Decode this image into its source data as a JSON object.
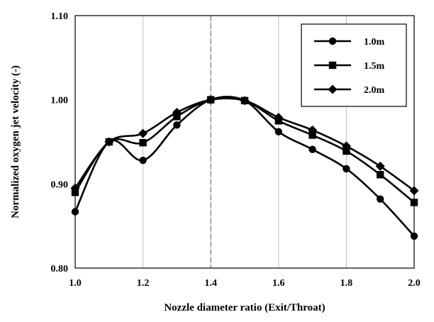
{
  "chart_data": {
    "type": "line",
    "title": "",
    "xlabel": "Nozzle diameter ratio (Exit/Throat)",
    "ylabel": "Normalized oxygen jet velocity (-)",
    "x": [
      1.0,
      1.1,
      1.2,
      1.3,
      1.4,
      1.5,
      1.6,
      1.7,
      1.8,
      1.9,
      2.0
    ],
    "xlim": [
      1.0,
      2.0
    ],
    "ylim": [
      0.8,
      1.1
    ],
    "x_ticks": [
      "1.0",
      "1.2",
      "1.4",
      "1.6",
      "1.8",
      "2.0"
    ],
    "y_ticks": [
      "0.80",
      "0.90",
      "1.00",
      "1.10"
    ],
    "grid": "vertical",
    "reference_line_x": 1.4,
    "legend_position": "top-right",
    "series": [
      {
        "name": "1.0m",
        "marker": "circle",
        "values": [
          0.867,
          0.95,
          0.928,
          0.97,
          1.0,
          0.999,
          0.962,
          0.941,
          0.918,
          0.882,
          0.838
        ]
      },
      {
        "name": "1.5m",
        "marker": "square",
        "values": [
          0.89,
          0.95,
          0.949,
          0.98,
          1.0,
          0.999,
          0.975,
          0.958,
          0.939,
          0.911,
          0.878
        ]
      },
      {
        "name": "2.0m",
        "marker": "diamond",
        "values": [
          0.895,
          0.95,
          0.96,
          0.985,
          1.0,
          0.999,
          0.979,
          0.964,
          0.945,
          0.921,
          0.892
        ]
      }
    ]
  },
  "colors": {
    "line": "#000000",
    "grid": "#bfbfbf",
    "reference": "#a6a6a6"
  }
}
